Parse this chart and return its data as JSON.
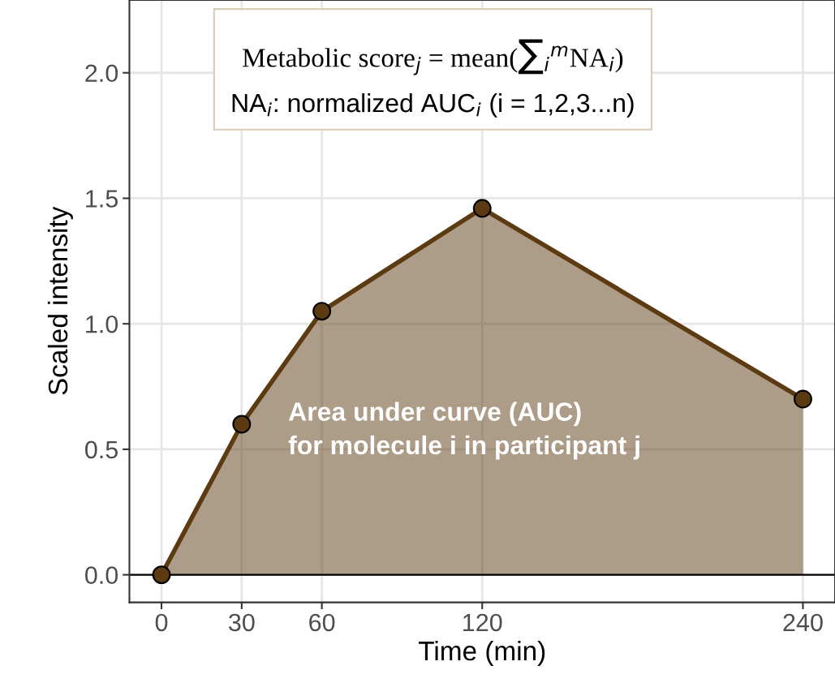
{
  "chart_data": {
    "type": "area",
    "xlabel": "Time (min)",
    "ylabel": "Scaled intensity",
    "x": [
      0,
      30,
      60,
      120,
      240
    ],
    "series": [
      {
        "color": "#5c3a12",
        "values": [
          0,
          0.6,
          1.05,
          1.46,
          0.7
        ]
      }
    ],
    "xlim": [
      -12,
      252
    ],
    "ylim": [
      -0.11,
      2.29
    ],
    "xticks": [
      0,
      30,
      60,
      120,
      240
    ],
    "yticks": [
      {
        "value": 0,
        "label": "0.0"
      },
      {
        "value": 0.5,
        "label": "0.5"
      },
      {
        "value": 1,
        "label": "1.0"
      },
      {
        "value": 1.5,
        "label": "1.5"
      },
      {
        "value": 2,
        "label": "2.0"
      }
    ],
    "grid": true,
    "marker": "circle",
    "line_style": "solid",
    "ref_lines": [
      {
        "axis": "y",
        "value": 0,
        "color": "#000000"
      }
    ],
    "annotations": [
      "Metabolic score$_{j}$ = mean(∑$_{i}$$^{m}$NA$_{i}$)",
      "NA$_{i}$: normalized AUC$_{i}$ (i = 1,2,3...n)",
      "Area under curve (AUC)\nfor molecule i in participant j"
    ]
  }
}
